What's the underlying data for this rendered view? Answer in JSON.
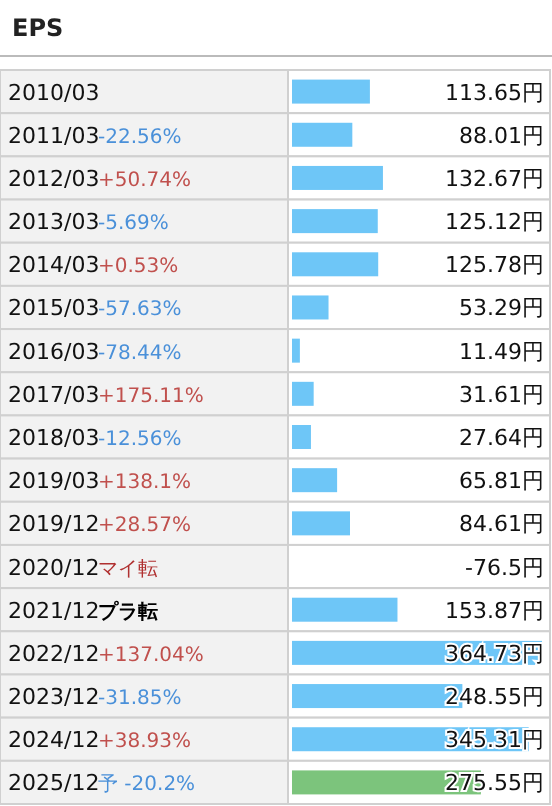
{
  "chart_data": {
    "type": "bar",
    "orientation": "horizontal",
    "title": "EPS",
    "categories": [
      "2010/03",
      "2011/03",
      "2012/03",
      "2013/03",
      "2014/03",
      "2015/03",
      "2016/03",
      "2017/03",
      "2018/03",
      "2019/03",
      "2019/12",
      "2020/12",
      "2021/12",
      "2022/12",
      "2023/12",
      "2024/12",
      "2025/12"
    ],
    "values": [
      113.65,
      88.01,
      132.67,
      125.12,
      125.78,
      53.29,
      11.49,
      31.61,
      27.64,
      65.81,
      84.61,
      null,
      153.87,
      364.73,
      248.55,
      345.31,
      275.55
    ],
    "value_labels": [
      "113.65円",
      "88.01円",
      "132.67円",
      "125.12円",
      "125.78円",
      "53.29円",
      "11.49円",
      "31.61円",
      "27.64円",
      "65.81円",
      "84.61円",
      "-76.5円",
      "153.87円",
      "364.73円",
      "248.55円",
      "345.31円",
      "275.55円"
    ],
    "colors": [
      "#6ec6f7",
      "#6ec6f7",
      "#6ec6f7",
      "#6ec6f7",
      "#6ec6f7",
      "#6ec6f7",
      "#6ec6f7",
      "#6ec6f7",
      "#6ec6f7",
      "#6ec6f7",
      "#6ec6f7",
      null,
      "#6ec6f7",
      "#6ec6f7",
      "#6ec6f7",
      "#6ec6f7",
      "#7cc47c"
    ],
    "xlim": [
      0,
      364.73
    ],
    "tick_labels": "y",
    "annotations": [
      "-22.56%",
      "+50.74%",
      "-5.69%",
      "+0.53%",
      "-57.63%",
      "-78.44%",
      "+175.11%",
      "-12.56%",
      "+138.1%",
      "+28.57%",
      "マイ転",
      "プラ転",
      "+137.04%",
      "-31.85%",
      "+38.93%",
      "予 -20.2%"
    ]
  }
}
